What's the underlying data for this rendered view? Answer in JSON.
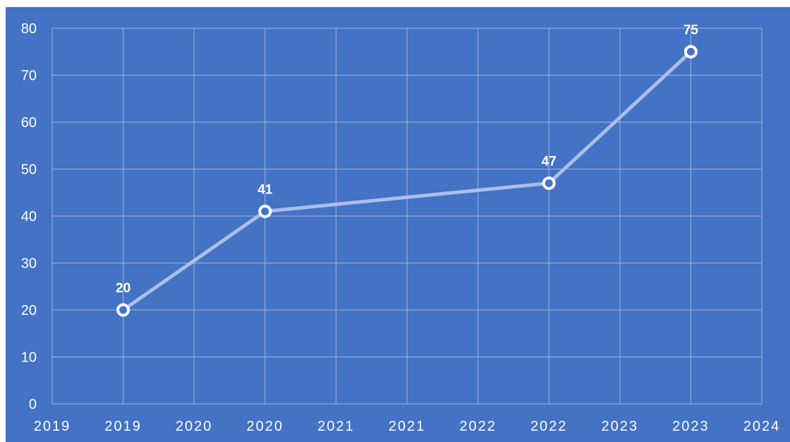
{
  "chart_data": {
    "type": "line",
    "title": "",
    "xlabel": "",
    "ylabel": "",
    "background_color": "#4472C4",
    "gridline_color": "#8FAADC",
    "line_color": "#A9BFE8",
    "marker_fill": "#4472C4",
    "marker_stroke": "#FFFFFF",
    "label_color": "#FFFFFF",
    "grid": true,
    "legend": "none",
    "ylim": [
      0,
      80
    ],
    "y_ticks": [
      0,
      10,
      20,
      30,
      40,
      50,
      60,
      70,
      80
    ],
    "x_tick_labels": [
      "2019",
      "2019",
      "2020",
      "2020",
      "2021",
      "2021",
      "2022",
      "2022",
      "2023",
      "2023",
      "2024"
    ],
    "x": [
      2019.5,
      2020.5,
      2022.5,
      2023.5
    ],
    "values": [
      20,
      41,
      47,
      75
    ],
    "data_labels": [
      "20",
      "41",
      "47",
      "75"
    ]
  }
}
